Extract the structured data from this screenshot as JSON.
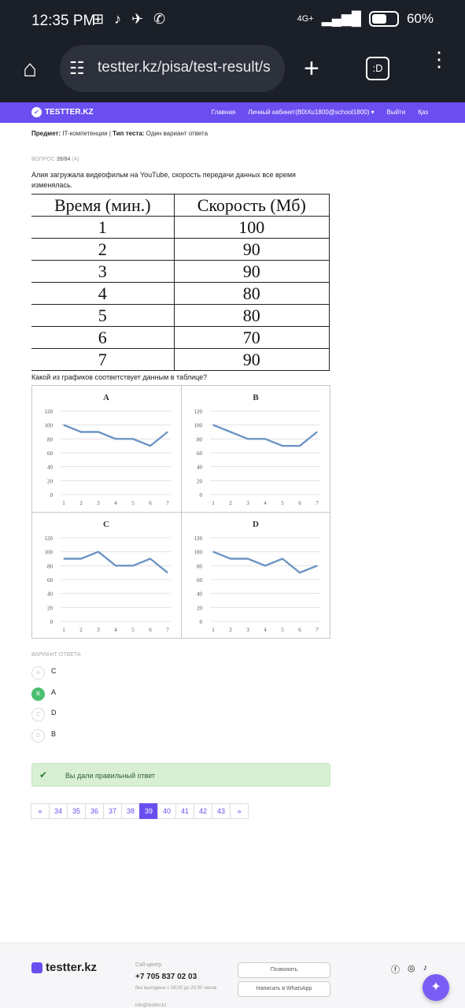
{
  "status_bar": {
    "time": "12:35 PM",
    "network": "4G+",
    "battery": "60%",
    "battery_level": 0.6
  },
  "browser": {
    "url": "testter.kz/pisa/test-result/s",
    "tabs_label": ":D"
  },
  "site_nav": {
    "logo": "TESTTER.KZ",
    "links": [
      "Главная",
      "Личный кабинет(B0tXu1800@school1800) ▾",
      "Выйти",
      "Қаз"
    ]
  },
  "meta": {
    "subject_label": "Предмет:",
    "subject_value": "IT-компетенции",
    "type_label": "Тип теста:",
    "type_value": "Один вариант ответа"
  },
  "question": {
    "number_label": "ВОПРОС",
    "number": "39/84",
    "level": "(A)",
    "text": "Алия загружала видеофильм на YouTube, скорость передачи данных все время изменялась.",
    "table_headers": [
      "Время (мин.)",
      "Скорость (Мб)"
    ],
    "table_rows": [
      [
        "1",
        "100"
      ],
      [
        "2",
        "90"
      ],
      [
        "3",
        "90"
      ],
      [
        "4",
        "80"
      ],
      [
        "5",
        "80"
      ],
      [
        "6",
        "70"
      ],
      [
        "7",
        "90"
      ]
    ],
    "prompt": "Какой из графиков соответствует данным в таблице?"
  },
  "chart_data": [
    {
      "type": "line",
      "title": "A",
      "x": [
        1,
        2,
        3,
        4,
        5,
        6,
        7
      ],
      "values": [
        100,
        90,
        90,
        80,
        80,
        70,
        90
      ],
      "ylim": [
        0,
        120
      ],
      "yticks": [
        0,
        20,
        40,
        60,
        80,
        100,
        120
      ],
      "color": "#6d95c4"
    },
    {
      "type": "line",
      "title": "B",
      "x": [
        1,
        2,
        3,
        4,
        5,
        6,
        7
      ],
      "values": [
        100,
        90,
        80,
        80,
        70,
        70,
        90
      ],
      "ylim": [
        0,
        120
      ],
      "yticks": [
        0,
        20,
        40,
        60,
        80,
        100,
        120
      ],
      "color": "#6d95c4"
    },
    {
      "type": "line",
      "title": "C",
      "x": [
        1,
        2,
        3,
        4,
        5,
        6,
        7
      ],
      "values": [
        90,
        90,
        100,
        80,
        80,
        90,
        70
      ],
      "ylim": [
        0,
        120
      ],
      "yticks": [
        0,
        20,
        40,
        60,
        80,
        100,
        120
      ],
      "color": "#6d95c4"
    },
    {
      "type": "line",
      "title": "D",
      "x": [
        1,
        2,
        3,
        4,
        5,
        6,
        7
      ],
      "values": [
        100,
        90,
        90,
        80,
        90,
        70,
        80
      ],
      "ylim": [
        0,
        120
      ],
      "yticks": [
        0,
        20,
        40,
        60,
        80,
        100,
        120
      ],
      "color": "#6d95c4"
    }
  ],
  "answers": {
    "label": "ВАРИАНТ ОТВЕТА",
    "options": [
      {
        "letter": "A",
        "text": "C",
        "selected": false
      },
      {
        "letter": "B",
        "text": "A",
        "selected": true
      },
      {
        "letter": "C",
        "text": "D",
        "selected": false
      },
      {
        "letter": "D",
        "text": "B",
        "selected": false
      }
    ]
  },
  "result": {
    "text": "Вы дали правильный ответ",
    "color": "#d8efd5"
  },
  "pagination": {
    "prev": "«",
    "next": "»",
    "pages": [
      "34",
      "35",
      "36",
      "37",
      "38",
      "39",
      "40",
      "41",
      "42",
      "43"
    ],
    "active": "39"
  },
  "footer": {
    "logo": "testter.kz",
    "callcenter_label": "Call-центр",
    "phone": "+7 705 837 02 03",
    "hours": "без выходных с 08:00 до 20:30 часов",
    "email": "info@testter.kz",
    "call_button": "Позвонить",
    "whatsapp_button": "Написать в WhatsApp",
    "social": [
      "facebook-icon",
      "instagram-icon",
      "tiktok-icon"
    ]
  },
  "accent_color": "#6b4ef0"
}
